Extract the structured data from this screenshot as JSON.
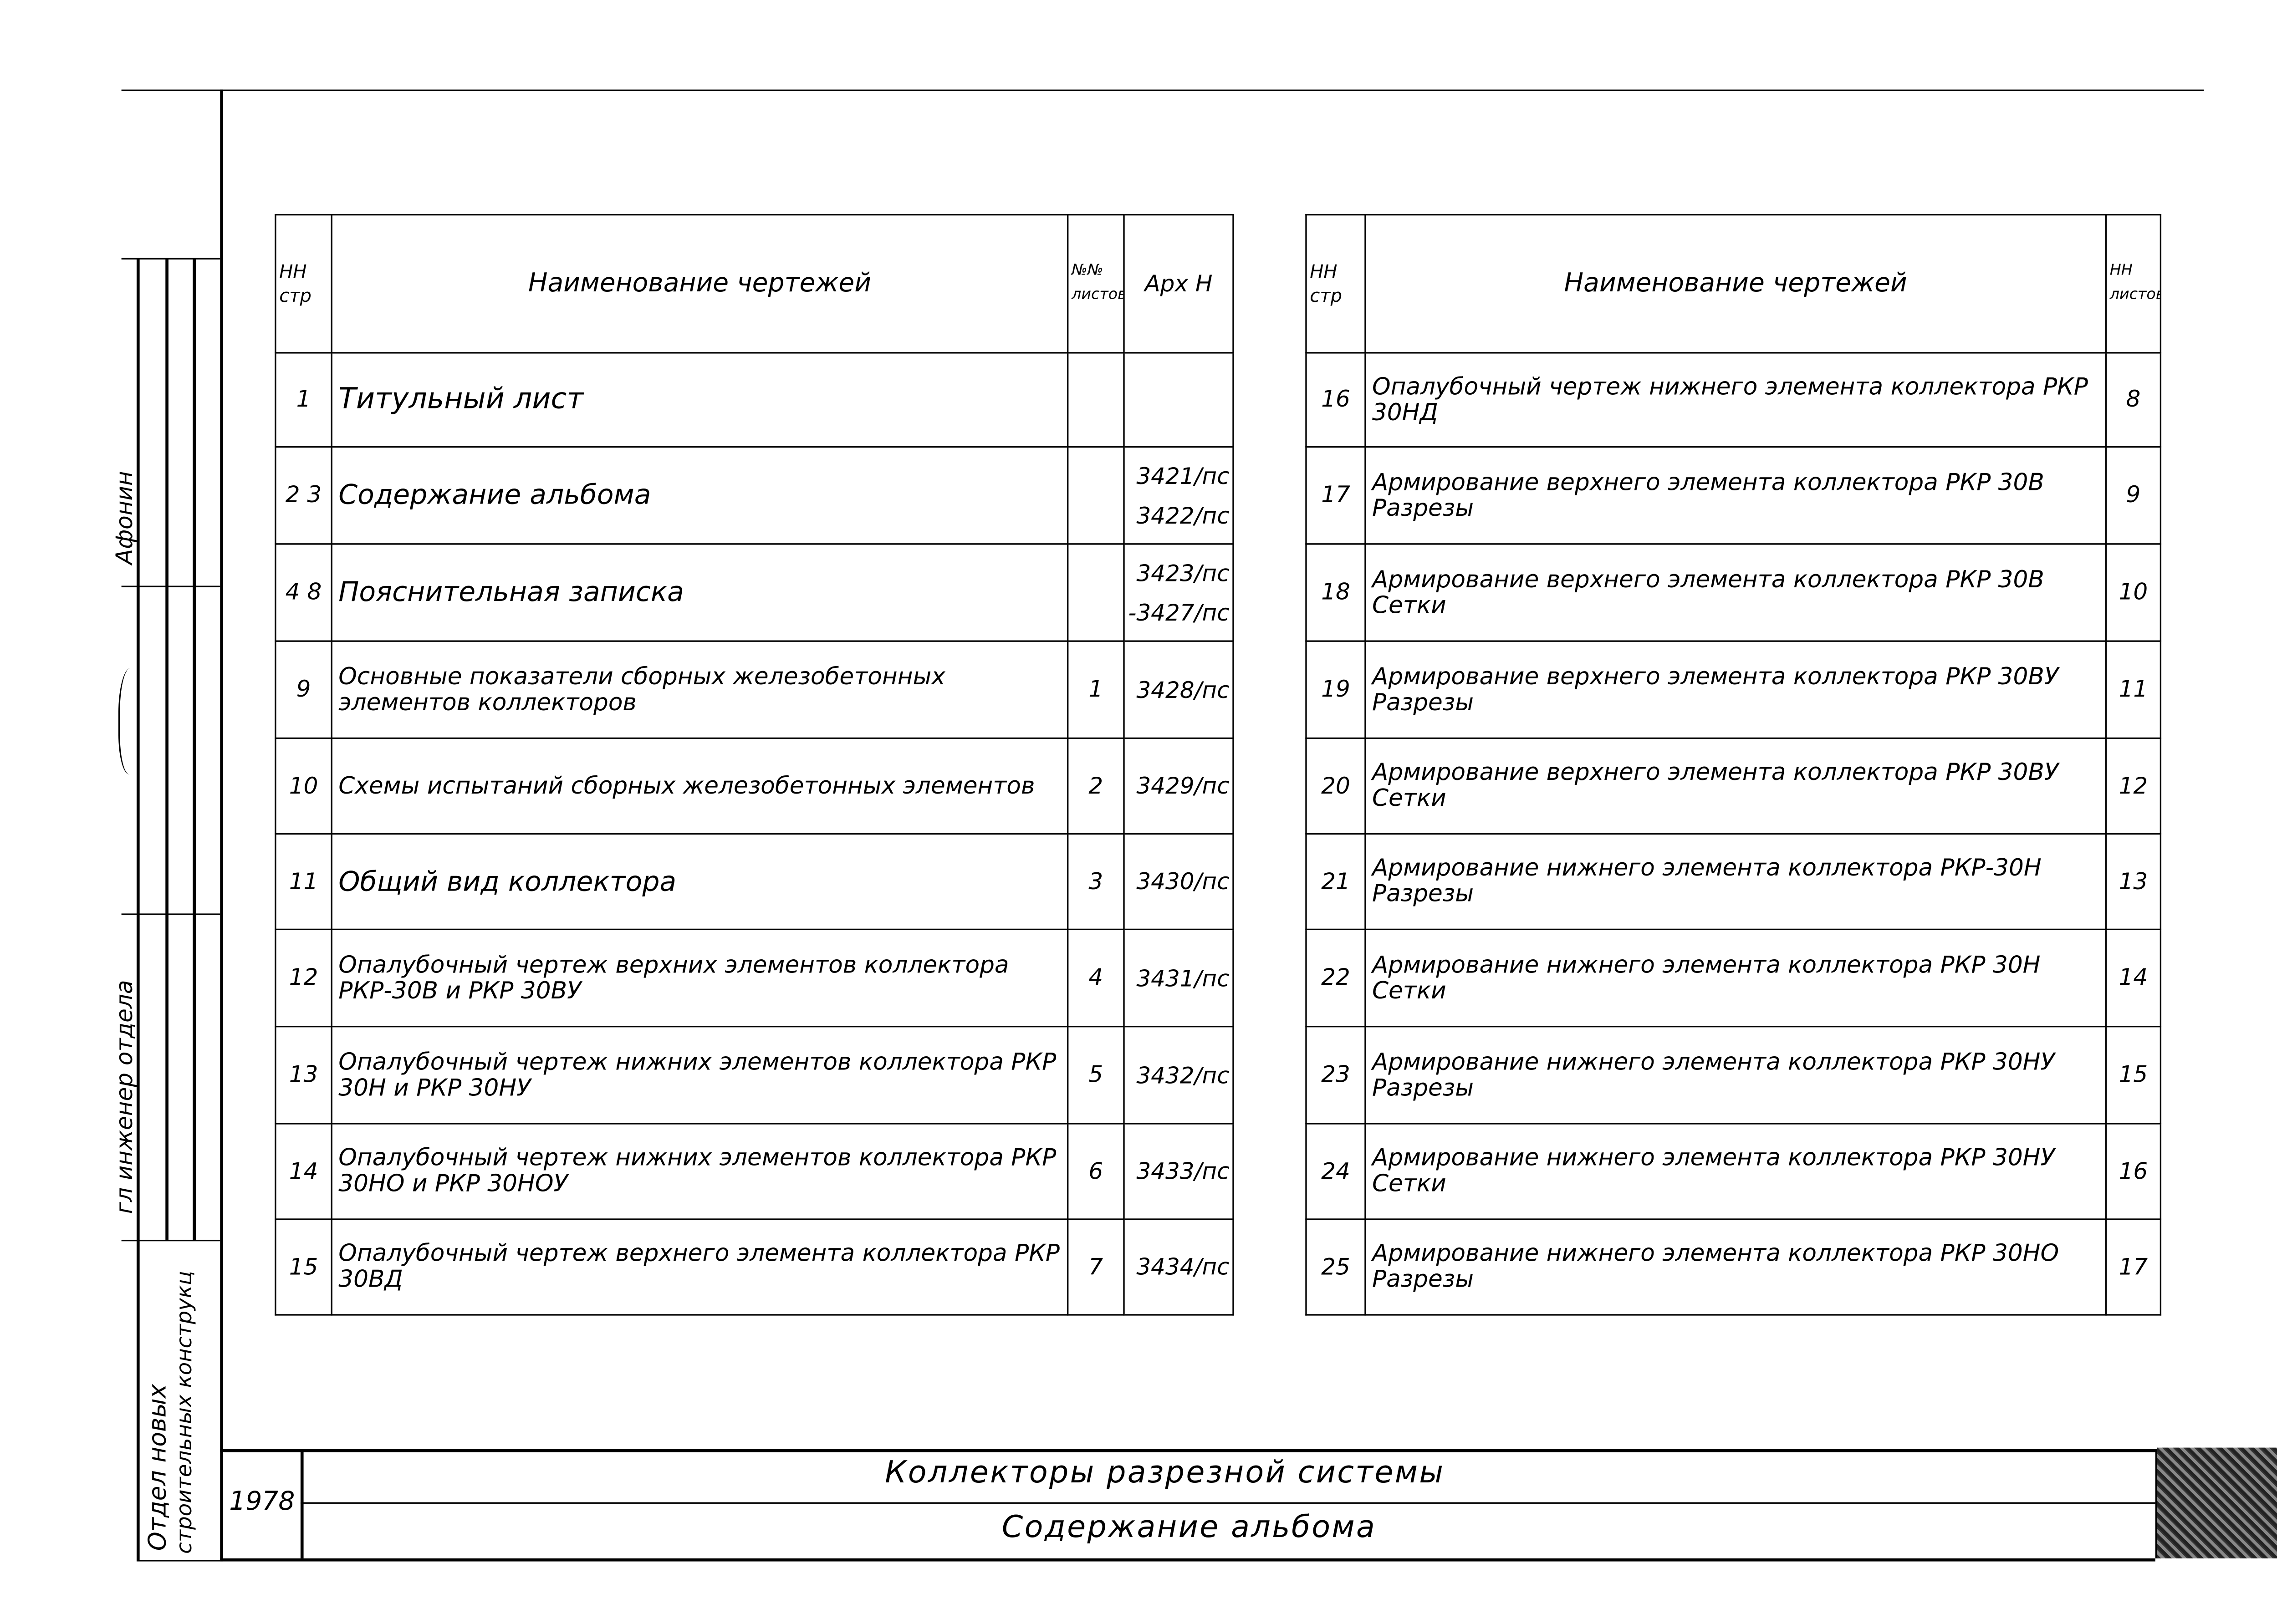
{
  "left_table": {
    "headers": {
      "page_no": "НН стр",
      "name": "Наименование чертежей",
      "sheet_no": "№№ листов",
      "archive_no": "Арх Н"
    },
    "rows": [
      {
        "page": "1",
        "name": "Титульный лист",
        "sheet": "",
        "archive": ""
      },
      {
        "page": "2 3",
        "name": "Содержание альбома",
        "sheet": "",
        "archive": "3421/пс 3422/пс"
      },
      {
        "page": "4 8",
        "name": "Пояснительная записка",
        "sheet": "",
        "archive": "3423/пс -3427/пс"
      },
      {
        "page": "9",
        "name": "Основные показатели сборных железобетонных элементов коллекторов",
        "sheet": "1",
        "archive": "3428/пс"
      },
      {
        "page": "10",
        "name": "Схемы испытаний сборных железобетонных элементов",
        "sheet": "2",
        "archive": "3429/пс"
      },
      {
        "page": "11",
        "name": "Общий вид коллектора",
        "sheet": "3",
        "archive": "3430/пс"
      },
      {
        "page": "12",
        "name": "Опалубочный чертеж верхних элементов коллектора РКР-30В и РКР 30ВУ",
        "sheet": "4",
        "archive": "3431/пс"
      },
      {
        "page": "13",
        "name": "Опалубочный чертеж нижних элементов коллектора РКР 30Н и РКР 30НУ",
        "sheet": "5",
        "archive": "3432/пс"
      },
      {
        "page": "14",
        "name": "Опалубочный чертеж нижних элементов коллектора РКР 30НО и РКР 30НОУ",
        "sheet": "6",
        "archive": "3433/пс"
      },
      {
        "page": "15",
        "name": "Опалубочный чертеж верхнего элемента коллектора РКР 30ВД",
        "sheet": "7",
        "archive": "3434/пс"
      }
    ]
  },
  "right_table": {
    "headers": {
      "page_no": "НН стр",
      "name": "Наименование чертежей",
      "sheet_no": "НН листов"
    },
    "rows": [
      {
        "page": "16",
        "name": "Опалубочный чертеж нижнего элемента коллектора РКР 30НД",
        "sheet": "8"
      },
      {
        "page": "17",
        "name": "Армирование верхнего элемента коллектора РКР 30В Разрезы",
        "sheet": "9"
      },
      {
        "page": "18",
        "name": "Армирование верхнего элемента коллектора РКР 30В Сетки",
        "sheet": "10"
      },
      {
        "page": "19",
        "name": "Армирование верхнего элемента коллектора РКР 30ВУ Разрезы",
        "sheet": "11"
      },
      {
        "page": "20",
        "name": "Армирование верхнего элемента коллектора РКР 30ВУ Сетки",
        "sheet": "12"
      },
      {
        "page": "21",
        "name": "Армирование нижнего элемента коллектора РКР-30Н Разрезы",
        "sheet": "13"
      },
      {
        "page": "22",
        "name": "Армирование нижнего элемента коллектора РКР 30Н Сетки",
        "sheet": "14"
      },
      {
        "page": "23",
        "name": "Армирование нижнего элемента коллектора РКР 30НУ Разрезы",
        "sheet": "15"
      },
      {
        "page": "24",
        "name": "Армирование нижнего элемента коллектора РКР 30НУ Сетки",
        "sheet": "16"
      },
      {
        "page": "25",
        "name": "Армирование нижнего элемента коллектора РКР 30НО Разрезы",
        "sheet": "17"
      }
    ]
  },
  "side_stamp": {
    "name1": "Афонин",
    "role": "гл инженер отдела",
    "department_line1": "Отдел новых",
    "department_line2": "строительных конструкц"
  },
  "title_block": {
    "year": "1978",
    "title": "Коллекторы разрезной системы",
    "subtitle": "Содержание альбома"
  }
}
